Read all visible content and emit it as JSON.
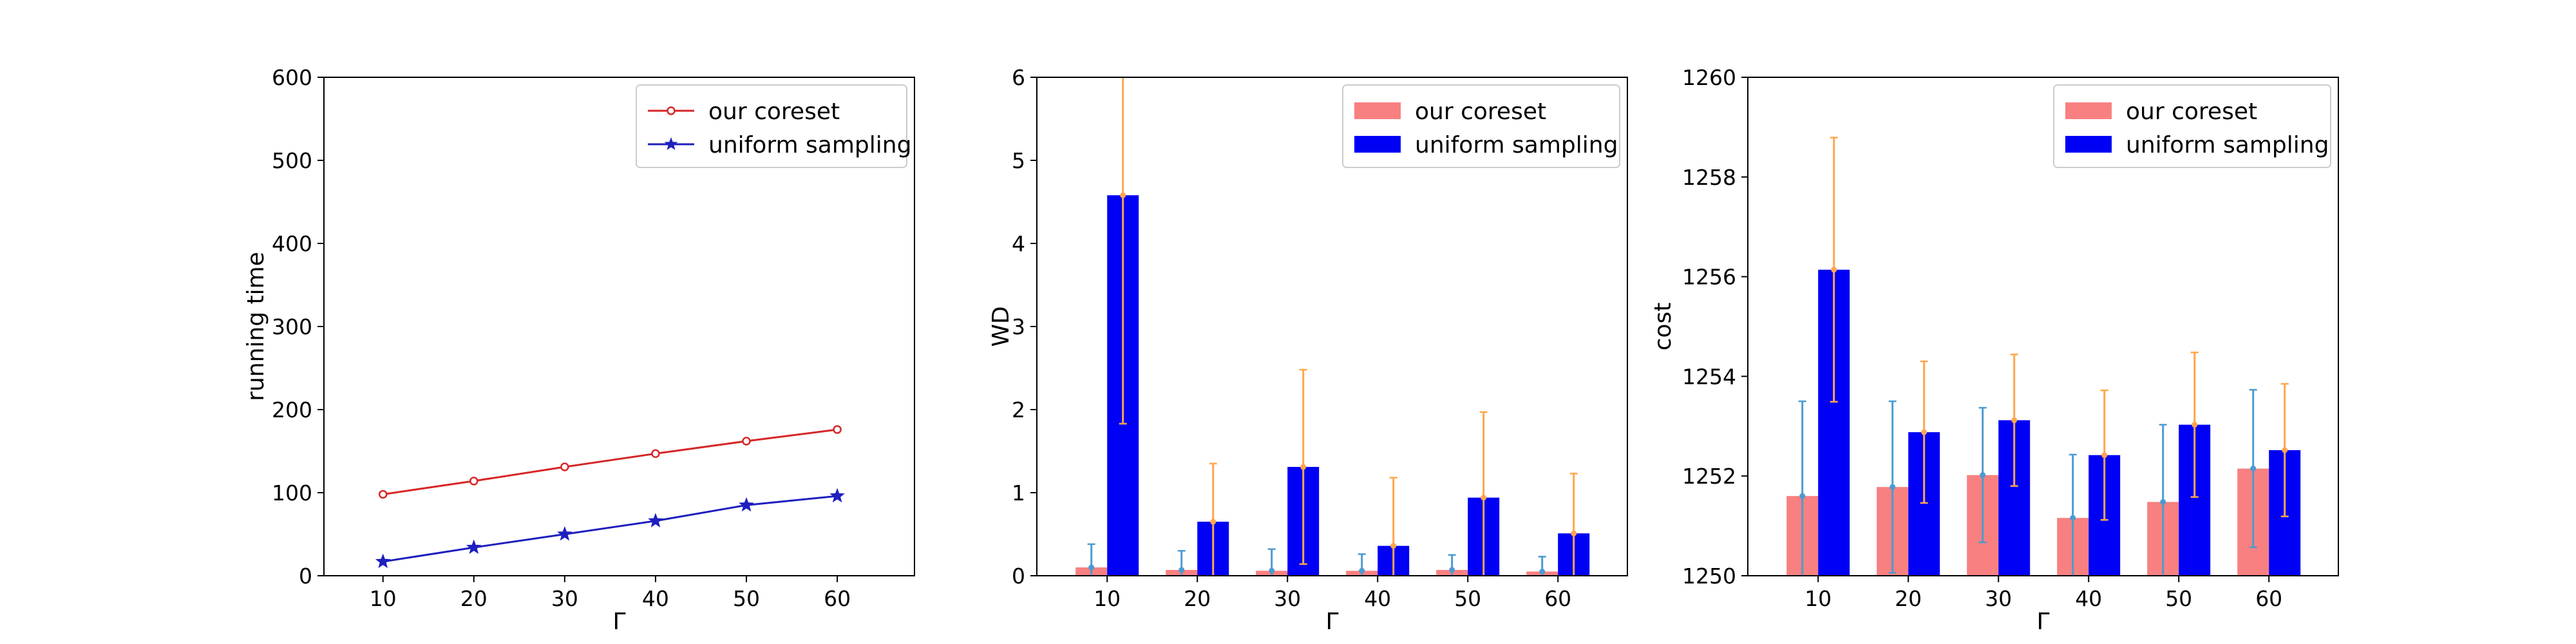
{
  "chart_data": [
    {
      "type": "line",
      "xlabel": "Γ",
      "ylabel": "running time",
      "x": [
        10,
        20,
        30,
        40,
        50,
        60
      ],
      "xticks": [
        "10",
        "20",
        "30",
        "40",
        "50",
        "60"
      ],
      "xlim": [
        3.5,
        68.5
      ],
      "ylim": [
        0,
        600
      ],
      "yticks": [
        "0",
        "100",
        "200",
        "300",
        "400",
        "500",
        "600"
      ],
      "grid": false,
      "legend_position": "top-right",
      "series": [
        {
          "name": "our coreset",
          "values": [
            98,
            114,
            131,
            147,
            162,
            176
          ],
          "color": "#d62728",
          "marker": "circle-open"
        },
        {
          "name": "uniform sampling",
          "values": [
            17,
            34,
            50,
            66,
            85,
            96
          ],
          "color": "#1f1fbf",
          "marker": "star"
        }
      ]
    },
    {
      "type": "bar",
      "xlabel": "Γ",
      "ylabel": "WD",
      "categories": [
        "10",
        "20",
        "30",
        "40",
        "50",
        "60"
      ],
      "ylim": [
        0,
        6
      ],
      "yticks": [
        "0",
        "1",
        "2",
        "3",
        "4",
        "5",
        "6"
      ],
      "grid": false,
      "legend_position": "top-right",
      "series": [
        {
          "name": "our coreset",
          "values": [
            0.1,
            0.07,
            0.06,
            0.06,
            0.07,
            0.05
          ],
          "error": [
            0.28,
            0.23,
            0.26,
            0.2,
            0.18,
            0.18
          ],
          "color": "#f88080",
          "error_color": "#4c9bd0"
        },
        {
          "name": "uniform sampling",
          "values": [
            4.58,
            0.65,
            1.31,
            0.36,
            0.94,
            0.51
          ],
          "error": [
            2.75,
            0.7,
            1.17,
            0.82,
            1.03,
            0.72
          ],
          "color": "#0000f5",
          "error_color": "#ffa64d"
        }
      ]
    },
    {
      "type": "bar",
      "xlabel": "Γ",
      "ylabel": "cost",
      "categories": [
        "10",
        "20",
        "30",
        "40",
        "50",
        "60"
      ],
      "ylim": [
        1250,
        1260
      ],
      "yticks": [
        "1250",
        "1252",
        "1254",
        "1256",
        "1258",
        "1260"
      ],
      "grid": false,
      "legend_position": "top-right",
      "series": [
        {
          "name": "our coreset",
          "values": [
            1251.6,
            1251.78,
            1252.02,
            1251.16,
            1251.48,
            1252.15
          ],
          "error": [
            1.9,
            1.72,
            1.35,
            1.27,
            1.55,
            1.58
          ],
          "color": "#f88080",
          "error_color": "#4c9bd0"
        },
        {
          "name": "uniform sampling",
          "values": [
            1256.14,
            1252.88,
            1253.12,
            1252.42,
            1253.03,
            1252.52
          ],
          "error": [
            2.65,
            1.42,
            1.32,
            1.3,
            1.45,
            1.33
          ],
          "color": "#0000f5",
          "error_color": "#ffa64d"
        }
      ]
    }
  ]
}
